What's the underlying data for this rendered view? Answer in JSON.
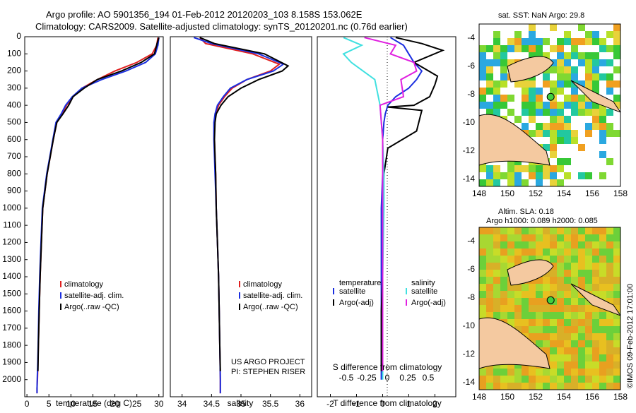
{
  "header": {
    "line1": "Argo profile: AO 5901356_194 01-Feb-2012 20120203_103 8.158S 153.062E",
    "line2": "Climatology: CARS2009. Satellite-adjusted climatology: synTS_20120201.nc (0.76d earlier)"
  },
  "colors": {
    "climatology": "#e02020",
    "satellite": "#1a2ee0",
    "argo": "#000000",
    "salinity_satellite": "#40e0e0",
    "salinity_argo": "#e020e0"
  },
  "chart_data": [
    {
      "type": "line",
      "xlabel": "temperature (deg C)",
      "xlim": [
        -0.5,
        31
      ],
      "xticks": [
        "0",
        "5",
        "10",
        "15",
        "20",
        "25",
        "30"
      ],
      "xtick_values": [
        0,
        5,
        10,
        15,
        20,
        25,
        30
      ],
      "ylim": [
        2100,
        0
      ],
      "yticks": [
        "0",
        "100",
        "200",
        "300",
        "400",
        "500",
        "600",
        "700",
        "800",
        "900",
        "1000",
        "1100",
        "1200",
        "1300",
        "1400",
        "1500",
        "1600",
        "1700",
        "1800",
        "1900",
        "2000"
      ],
      "ytick_values": [
        0,
        100,
        200,
        300,
        400,
        500,
        600,
        700,
        800,
        900,
        1000,
        1100,
        1200,
        1300,
        1400,
        1500,
        1600,
        1700,
        1800,
        1900,
        2000
      ],
      "legend": [
        "climatology",
        "satellite-adj. clim.",
        "Argo(..raw -QC)"
      ],
      "series": [
        {
          "name": "climatology",
          "x": [
            29.8,
            29.5,
            28.5,
            25,
            20,
            16,
            12.5,
            10.5,
            9,
            8,
            6.8,
            6,
            5.3,
            4.6,
            4.1,
            3.6,
            3.3,
            3,
            2.8,
            2.6,
            2.5,
            2.4,
            2.3,
            2.3
          ],
          "y": [
            5,
            50,
            100,
            150,
            200,
            250,
            300,
            350,
            400,
            450,
            500,
            600,
            700,
            800,
            900,
            1000,
            1200,
            1400,
            1600,
            1800,
            1900,
            2000,
            2050,
            2080
          ]
        },
        {
          "name": "satellite-adj. clim.",
          "x": [
            30,
            29.8,
            29.2,
            27,
            22.5,
            17,
            12.5,
            10.3,
            8.8,
            7.8,
            6.6,
            5.9,
            5.2,
            4.5,
            4.0,
            3.5,
            3.2,
            2.9,
            2.7,
            2.55,
            2.45,
            2.35,
            2.3,
            2.3
          ],
          "y": [
            5,
            50,
            100,
            150,
            200,
            250,
            300,
            350,
            400,
            450,
            500,
            600,
            700,
            800,
            900,
            1000,
            1200,
            1400,
            1600,
            1800,
            1900,
            2000,
            2050,
            2080
          ]
        },
        {
          "name": "Argo(..raw -QC)",
          "x": [
            30,
            29.6,
            29,
            26,
            21.5,
            16,
            13,
            10.5,
            9.5,
            8.2,
            6.8,
            6,
            5.3,
            4.6,
            4.1,
            3.6,
            3.3,
            3,
            2.8,
            2.6,
            2.5
          ],
          "y": [
            5,
            40,
            100,
            150,
            200,
            250,
            300,
            350,
            400,
            450,
            500,
            600,
            700,
            800,
            900,
            1000,
            1200,
            1400,
            1600,
            1800,
            1950
          ]
        }
      ]
    },
    {
      "type": "line",
      "xlabel": "salinity",
      "xlim": [
        33.8,
        36.2
      ],
      "xticks": [
        "34",
        "34.5",
        "35",
        "35.5",
        "36"
      ],
      "xtick_values": [
        34,
        34.5,
        35,
        35.5,
        36
      ],
      "ylim": [
        2100,
        0
      ],
      "legend": [
        "climatology",
        "satellite-adj. clim.",
        "Argo(..raw -QC)"
      ],
      "annotation": [
        "US ARGO PROJECT",
        "PI: STEPHEN RISER"
      ],
      "series": [
        {
          "name": "climatology",
          "x": [
            34.3,
            34.4,
            35.2,
            35.65,
            35.5,
            35.1,
            34.85,
            34.72,
            34.62,
            34.57,
            34.55,
            34.55,
            34.56,
            34.57,
            34.58,
            34.6,
            34.62,
            34.63,
            34.64,
            34.65,
            34.65
          ],
          "y": [
            5,
            40,
            100,
            160,
            200,
            250,
            300,
            350,
            400,
            450,
            500,
            600,
            700,
            800,
            1000,
            1200,
            1400,
            1600,
            1800,
            2000,
            2080
          ]
        },
        {
          "name": "satellite-adj. clim.",
          "x": [
            34.2,
            34.5,
            35.3,
            35.72,
            35.55,
            35.1,
            34.82,
            34.7,
            34.6,
            34.56,
            34.54,
            34.54,
            34.55,
            34.56,
            34.58,
            34.6,
            34.62,
            34.63,
            34.64,
            34.65,
            34.65
          ],
          "y": [
            5,
            40,
            100,
            160,
            200,
            250,
            300,
            350,
            400,
            450,
            500,
            600,
            700,
            800,
            1000,
            1200,
            1400,
            1600,
            1800,
            2000,
            2080
          ]
        },
        {
          "name": "Argo(..raw -QC)",
          "x": [
            34.3,
            34.55,
            35.4,
            35.8,
            35.7,
            35.3,
            35.0,
            34.78,
            34.66,
            34.58,
            34.56,
            34.55,
            34.56,
            34.57,
            34.58,
            34.6,
            34.62,
            34.63,
            34.64,
            34.65
          ],
          "y": [
            5,
            40,
            100,
            170,
            200,
            250,
            300,
            350,
            400,
            450,
            500,
            600,
            700,
            800,
            1000,
            1200,
            1400,
            1600,
            1800,
            1950
          ]
        }
      ]
    },
    {
      "type": "line",
      "xlabel_top": "S difference from climatology",
      "xlabel": "T difference from climatology",
      "xlim": [
        -2.5,
        2.8
      ],
      "xticks_top": [
        "-0.5",
        "-0.25",
        "0",
        "0.25",
        "0.5"
      ],
      "xticks_top_values": [
        -0.5,
        -0.25,
        0,
        0.25,
        0.5
      ],
      "xticks": [
        "-2",
        "-1",
        "0",
        "1",
        "2"
      ],
      "xtick_values": [
        -2,
        -1,
        0,
        1,
        2
      ],
      "ylim": [
        2100,
        0
      ],
      "legend_left_title": "temperature",
      "legend_left": [
        "satellite",
        "Argo(-adj)"
      ],
      "legend_right_title": "salinity",
      "legend_right": [
        "satellite",
        "Argo(-adj)"
      ],
      "series": [
        {
          "name": "temperature satellite",
          "x": [
            0.3,
            0.8,
            1.0,
            1.2,
            1.5,
            1.3,
            1.0,
            0.5,
            0.2,
            0.1,
            0.05,
            0,
            0,
            -0.05,
            -0.05,
            -0.05,
            -0.05,
            -0.05,
            -0.05
          ],
          "y": [
            5,
            50,
            100,
            150,
            200,
            250,
            300,
            350,
            400,
            450,
            500,
            600,
            800,
            1000,
            1200,
            1400,
            1600,
            1800,
            2000
          ]
        },
        {
          "name": "temperature Argo(-adj)",
          "x": [
            0.5,
            1.5,
            2.3,
            1.2,
            2.1,
            2.0,
            1.8,
            1.2,
            0.2,
            1.5,
            1.3,
            0.2,
            0.05,
            0,
            0,
            0,
            -0.05,
            -0.05,
            -0.05
          ],
          "y": [
            5,
            40,
            80,
            150,
            230,
            280,
            350,
            400,
            410,
            430,
            550,
            650,
            800,
            1000,
            1200,
            1400,
            1600,
            1800,
            1950
          ]
        },
        {
          "name": "salinity satellite",
          "x": [
            -1.5,
            -0.8,
            -1.5,
            -1.2,
            -0.3,
            -0.1,
            0,
            0.05,
            0.05,
            0,
            0,
            0
          ],
          "y": [
            5,
            50,
            100,
            150,
            250,
            400,
            600,
            800,
            1000,
            1400,
            1800,
            2000
          ]
        },
        {
          "name": "salinity Argo(-adj)",
          "x": [
            -0.7,
            0.5,
            0.3,
            1.2,
            1.3,
            0.7,
            0.8,
            -0.1,
            0,
            0,
            0,
            0
          ],
          "y": [
            5,
            50,
            100,
            150,
            200,
            250,
            350,
            400,
            600,
            1000,
            1400,
            1950
          ]
        }
      ]
    },
    {
      "type": "heatmap",
      "title": "sat. SST: NaN Argo: 29.8",
      "xticks": [
        "148",
        "150",
        "152",
        "154",
        "156",
        "158"
      ],
      "yticks": [
        "-4",
        "-6",
        "-8",
        "-10",
        "-12",
        "-14"
      ],
      "marker": {
        "lon": 153.06,
        "lat": -8.16
      }
    },
    {
      "type": "heatmap",
      "title": "Altim. SLA: 0.18",
      "subtitle": "Argo h1000: 0.089 h2000: 0.085",
      "xticks": [
        "148",
        "150",
        "152",
        "154",
        "156",
        "158"
      ],
      "yticks": [
        "-4",
        "-6",
        "-8",
        "-10",
        "-12",
        "-14"
      ],
      "marker": {
        "lon": 153.06,
        "lat": -8.16
      }
    }
  ],
  "footer": {
    "credit": "©IMOS 09-Feb-2012 17:01:00"
  }
}
